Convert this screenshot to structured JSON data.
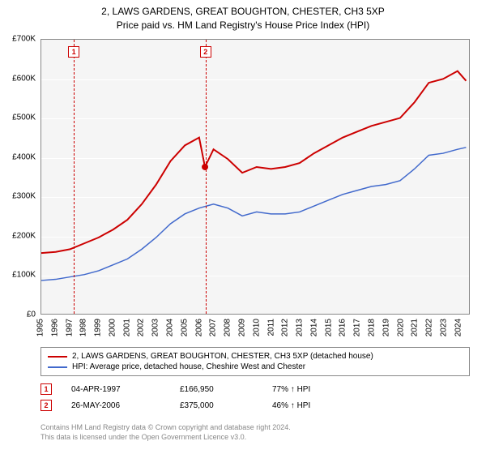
{
  "title_line1": "2, LAWS GARDENS, GREAT BOUGHTON, CHESTER, CH3 5XP",
  "title_line2": "Price paid vs. HM Land Registry's House Price Index (HPI)",
  "chart": {
    "type": "line",
    "background_color": "#f5f5f5",
    "grid_color": "#ffffff",
    "border_color": "#888888",
    "x_years": [
      1995,
      1996,
      1997,
      1998,
      1999,
      2000,
      2001,
      2002,
      2003,
      2004,
      2005,
      2006,
      2007,
      2008,
      2009,
      2010,
      2011,
      2012,
      2013,
      2014,
      2015,
      2016,
      2017,
      2018,
      2019,
      2020,
      2021,
      2022,
      2023,
      2024
    ],
    "ylim": [
      0,
      700000
    ],
    "ytick_step": 100000,
    "y_tick_labels": [
      "£0",
      "£100K",
      "£200K",
      "£300K",
      "£400K",
      "£500K",
      "£600K",
      "£700K"
    ],
    "series": [
      {
        "name": "property",
        "color": "#cc0000",
        "width": 2,
        "points": [
          [
            1995,
            155000
          ],
          [
            1996,
            158000
          ],
          [
            1997,
            165000
          ],
          [
            1998,
            180000
          ],
          [
            1999,
            195000
          ],
          [
            2000,
            215000
          ],
          [
            2001,
            240000
          ],
          [
            2002,
            280000
          ],
          [
            2003,
            330000
          ],
          [
            2004,
            390000
          ],
          [
            2005,
            430000
          ],
          [
            2006,
            450000
          ],
          [
            2006.4,
            375000
          ],
          [
            2007,
            420000
          ],
          [
            2008,
            395000
          ],
          [
            2009,
            360000
          ],
          [
            2010,
            375000
          ],
          [
            2011,
            370000
          ],
          [
            2012,
            375000
          ],
          [
            2013,
            385000
          ],
          [
            2014,
            410000
          ],
          [
            2015,
            430000
          ],
          [
            2016,
            450000
          ],
          [
            2017,
            465000
          ],
          [
            2018,
            480000
          ],
          [
            2019,
            490000
          ],
          [
            2020,
            500000
          ],
          [
            2021,
            540000
          ],
          [
            2022,
            590000
          ],
          [
            2023,
            600000
          ],
          [
            2024,
            620000
          ],
          [
            2024.6,
            595000
          ]
        ]
      },
      {
        "name": "hpi",
        "color": "#4169cc",
        "width": 1.5,
        "points": [
          [
            1995,
            85000
          ],
          [
            1996,
            88000
          ],
          [
            1997,
            94000
          ],
          [
            1998,
            100000
          ],
          [
            1999,
            110000
          ],
          [
            2000,
            125000
          ],
          [
            2001,
            140000
          ],
          [
            2002,
            165000
          ],
          [
            2003,
            195000
          ],
          [
            2004,
            230000
          ],
          [
            2005,
            255000
          ],
          [
            2006,
            270000
          ],
          [
            2007,
            280000
          ],
          [
            2008,
            270000
          ],
          [
            2009,
            250000
          ],
          [
            2010,
            260000
          ],
          [
            2011,
            255000
          ],
          [
            2012,
            255000
          ],
          [
            2013,
            260000
          ],
          [
            2014,
            275000
          ],
          [
            2015,
            290000
          ],
          [
            2016,
            305000
          ],
          [
            2017,
            315000
          ],
          [
            2018,
            325000
          ],
          [
            2019,
            330000
          ],
          [
            2020,
            340000
          ],
          [
            2021,
            370000
          ],
          [
            2022,
            405000
          ],
          [
            2023,
            410000
          ],
          [
            2024,
            420000
          ],
          [
            2024.6,
            425000
          ]
        ]
      }
    ],
    "markers": [
      {
        "num": "1",
        "year": 1997.26,
        "box_top": 8
      },
      {
        "num": "2",
        "year": 2006.4,
        "box_top": 8,
        "dot_value": 375000
      }
    ]
  },
  "legend": {
    "items": [
      {
        "color": "#cc0000",
        "label": "2, LAWS GARDENS, GREAT BOUGHTON, CHESTER, CH3 5XP (detached house)"
      },
      {
        "color": "#4169cc",
        "label": "HPI: Average price, detached house, Cheshire West and Chester"
      }
    ]
  },
  "sales": [
    {
      "num": "1",
      "date": "04-APR-1997",
      "price": "£166,950",
      "pct": "77% ↑ HPI"
    },
    {
      "num": "2",
      "date": "26-MAY-2006",
      "price": "£375,000",
      "pct": "46% ↑ HPI"
    }
  ],
  "footer_line1": "Contains HM Land Registry data © Crown copyright and database right 2024.",
  "footer_line2": "This data is licensed under the Open Government Licence v3.0."
}
